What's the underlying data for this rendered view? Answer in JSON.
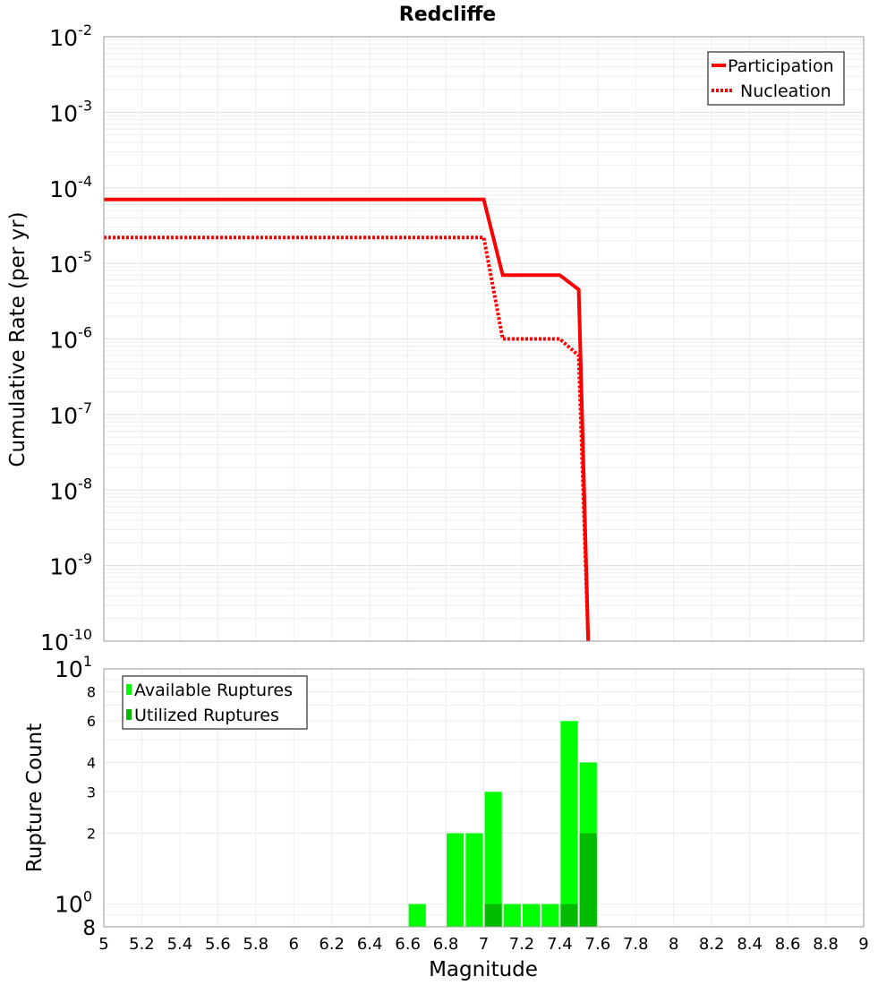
{
  "title": "Redcliffe",
  "chart_data": [
    {
      "type": "line",
      "title": "Redcliffe",
      "xlabel": "",
      "ylabel": "Cumulative Rate (per yr)",
      "xlim": [
        5,
        9
      ],
      "ylim": [
        1e-10,
        0.01
      ],
      "yscale": "log",
      "grid": true,
      "legend": "top-right",
      "ytick_exponents": [
        "-10",
        "-9",
        "-8",
        "-7",
        "-6",
        "-5",
        "-4",
        "-3",
        "-2"
      ],
      "ytick_base": "10",
      "series": [
        {
          "name": "Participation",
          "style": "solid",
          "color": "#ff0000",
          "x": [
            5.0,
            7.0,
            7.1,
            7.4,
            7.5,
            7.55
          ],
          "y": [
            7e-05,
            7e-05,
            7e-06,
            7e-06,
            4.5e-06,
            1e-10
          ]
        },
        {
          "name": "Nucleation",
          "style": "dotted",
          "color": "#ff0000",
          "x": [
            5.0,
            7.0,
            7.1,
            7.4,
            7.5,
            7.55
          ],
          "y": [
            2.2e-05,
            2.2e-05,
            1e-06,
            1e-06,
            6e-07,
            1e-10
          ]
        }
      ]
    },
    {
      "type": "bar",
      "xlabel": "Magnitude",
      "ylabel": "Rupture Count",
      "xlim": [
        5,
        9
      ],
      "ylim": [
        0.8,
        10
      ],
      "yscale": "log",
      "grid": true,
      "legend": "top-left",
      "bar_width": 0.1,
      "xticks": [
        "5",
        "5.2",
        "5.4",
        "5.6",
        "5.8",
        "6",
        "6.2",
        "6.4",
        "6.6",
        "6.8",
        "7",
        "7.2",
        "7.4",
        "7.6",
        "7.8",
        "8",
        "8.2",
        "8.4",
        "8.6",
        "8.8",
        "9"
      ],
      "ytick_labels": [
        {
          "value": 10,
          "base": "10",
          "exp": "1"
        },
        {
          "value": 8,
          "label": "8"
        },
        {
          "value": 6,
          "label": "6"
        },
        {
          "value": 4,
          "label": "4"
        },
        {
          "value": 3,
          "label": "3"
        },
        {
          "value": 2,
          "label": "2"
        },
        {
          "value": 1,
          "base": "10",
          "exp": "0"
        },
        {
          "value": 0.8,
          "label": "8"
        }
      ],
      "series": [
        {
          "name": "Available Ruptures",
          "color": "#00ff00",
          "x": [
            6.65,
            6.85,
            6.95,
            7.05,
            7.15,
            7.25,
            7.35,
            7.45,
            7.55
          ],
          "values": [
            1,
            2,
            2,
            3,
            1,
            1,
            1,
            6,
            4
          ]
        },
        {
          "name": "Utilized Ruptures",
          "color": "#00bb00",
          "x": [
            7.05,
            7.45,
            7.55
          ],
          "values": [
            1,
            1,
            2
          ]
        }
      ]
    }
  ]
}
